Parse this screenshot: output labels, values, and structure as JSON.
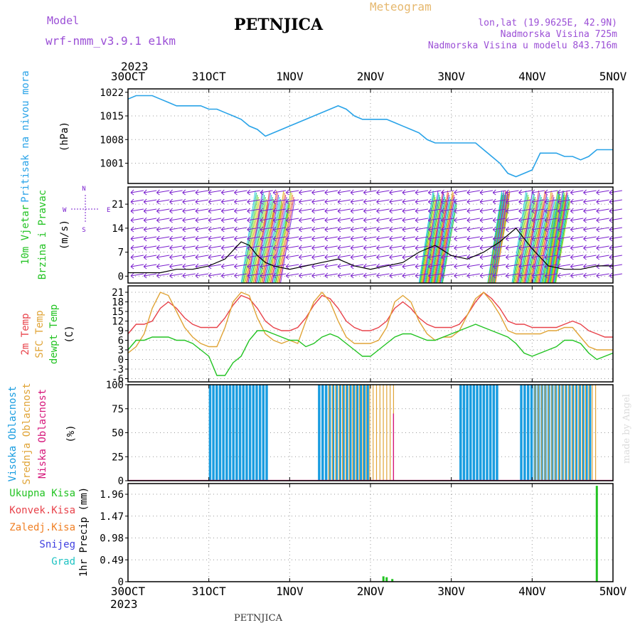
{
  "header": {
    "model_label": "Model",
    "model_name": "wrf-nmm_v3.9.1 e1km",
    "title": "PETNJICA",
    "product": "Meteogram",
    "lonlat": "lon,lat (19.9625E, 42.9N)",
    "elevation": "Nadmorska Visina 725m",
    "model_elevation": "Nadmorska Visina u modelu 843.716m"
  },
  "footer": {
    "station": "PETNJICA",
    "credit": "made by Angel"
  },
  "time_axis": {
    "year": "2023",
    "labels": [
      "30OCT",
      "31OCT",
      "1NOV",
      "2NOV",
      "3NOV",
      "4NOV",
      "5NOV"
    ]
  },
  "colors": {
    "pressure": "#29a3e8",
    "wind_label": "#22c322",
    "wind_vector": "#7a1fcf",
    "temp2m": "#e8424a",
    "sfc_temp": "#e0a437",
    "dewpt": "#22c322",
    "high_cloud": "#1a9de0",
    "mid_cloud": "#e0a437",
    "low_cloud": "#d6157a",
    "total_rain": "#22c322",
    "conv_rain": "#e8424a",
    "freezing_rain": "#f07f23",
    "snow": "#3f3fe0",
    "hail": "#1fc3c3"
  },
  "chart_data": [
    {
      "type": "line",
      "panel": "pressure",
      "ylabel_name": "Pritisak na nivou mora",
      "ylabel_unit": "(hPa)",
      "yticks": [
        1001,
        1008,
        1015,
        1022
      ],
      "ylim": [
        995,
        1023
      ],
      "x_days": [
        0,
        0.1,
        0.2,
        0.3,
        0.4,
        0.5,
        0.6,
        0.7,
        0.8,
        0.9,
        1.0,
        1.1,
        1.2,
        1.3,
        1.4,
        1.5,
        1.6,
        1.7,
        1.8,
        1.9,
        2.0,
        2.1,
        2.2,
        2.3,
        2.4,
        2.5,
        2.6,
        2.7,
        2.8,
        2.9,
        3.0,
        3.1,
        3.2,
        3.3,
        3.4,
        3.5,
        3.6,
        3.7,
        3.8,
        3.9,
        4.0,
        4.1,
        4.2,
        4.3,
        4.4,
        4.5,
        4.6,
        4.7,
        4.8,
        4.9,
        5.0,
        5.1,
        5.2,
        5.3,
        5.4,
        5.5,
        5.6,
        5.7,
        5.8,
        5.9,
        6.0
      ],
      "values": [
        1020,
        1021,
        1021,
        1021,
        1020,
        1019,
        1018,
        1018,
        1018,
        1018,
        1017,
        1017,
        1016,
        1015,
        1014,
        1012,
        1011,
        1009,
        1010,
        1011,
        1012,
        1013,
        1014,
        1015,
        1016,
        1017,
        1018,
        1017,
        1015,
        1014,
        1014,
        1014,
        1014,
        1013,
        1012,
        1011,
        1010,
        1008,
        1007,
        1007,
        1007,
        1007,
        1007,
        1007,
        1005,
        1003,
        1001,
        998,
        997,
        998,
        999,
        1004,
        1004,
        1004,
        1003,
        1003,
        1002,
        1003,
        1005,
        1005,
        1005
      ],
      "grid": true
    },
    {
      "type": "line",
      "panel": "wind",
      "ylabel_name": "10m Vjetar",
      "ylabel_name2": "Brzina i Pravac",
      "ylabel_unit": "(m/s)",
      "compass": {
        "n": "N",
        "s": "S",
        "w": "W",
        "e": "E"
      },
      "yticks": [
        0,
        7,
        14,
        21
      ],
      "ylim": [
        -2,
        26
      ],
      "x_days": [
        0,
        0.2,
        0.4,
        0.6,
        0.8,
        1.0,
        1.2,
        1.4,
        1.5,
        1.6,
        1.7,
        1.8,
        2.0,
        2.2,
        2.4,
        2.6,
        2.8,
        3.0,
        3.2,
        3.4,
        3.6,
        3.8,
        4.0,
        4.2,
        4.4,
        4.6,
        4.8,
        5.0,
        5.2,
        5.4,
        5.6,
        5.8,
        6.0
      ],
      "values": [
        1,
        1,
        1,
        2,
        2,
        3,
        5,
        10,
        9,
        6,
        4,
        3,
        2,
        3,
        4,
        5,
        3,
        2,
        3,
        4,
        7,
        9,
        6,
        5,
        7,
        10,
        14,
        8,
        3,
        2,
        2,
        3,
        3
      ],
      "grid": true
    },
    {
      "type": "line",
      "panel": "temperature",
      "ylabel_names": [
        "2m Temp",
        "SFC Temp",
        "dewpt Temp"
      ],
      "ylabel_unit": "(C)",
      "yticks": [
        -6,
        -3,
        0,
        3,
        6,
        9,
        12,
        15,
        18,
        21
      ],
      "ylim": [
        -7,
        23
      ],
      "x_days": [
        0,
        0.1,
        0.2,
        0.3,
        0.4,
        0.5,
        0.6,
        0.7,
        0.8,
        0.9,
        1.0,
        1.1,
        1.2,
        1.3,
        1.4,
        1.5,
        1.6,
        1.7,
        1.8,
        1.9,
        2.0,
        2.1,
        2.2,
        2.3,
        2.4,
        2.5,
        2.6,
        2.7,
        2.8,
        2.9,
        3.0,
        3.1,
        3.2,
        3.3,
        3.4,
        3.5,
        3.6,
        3.7,
        3.8,
        3.9,
        4.0,
        4.1,
        4.2,
        4.3,
        4.4,
        4.5,
        4.6,
        4.7,
        4.8,
        4.9,
        5.0,
        5.1,
        5.2,
        5.3,
        5.4,
        5.5,
        5.6,
        5.7,
        5.8,
        5.9,
        6.0
      ],
      "series": [
        {
          "name": "2m Temp",
          "values": [
            8,
            11,
            11,
            12,
            16,
            18,
            16,
            13,
            11,
            10,
            10,
            10,
            13,
            17,
            20,
            19,
            16,
            12,
            10,
            9,
            9,
            10,
            13,
            17,
            20,
            19,
            16,
            12,
            10,
            9,
            9,
            10,
            12,
            16,
            18,
            16,
            13,
            11,
            10,
            10,
            10,
            11,
            14,
            18,
            21,
            19,
            16,
            12,
            11,
            11,
            10,
            10,
            10,
            10,
            11,
            12,
            11,
            9,
            8,
            7,
            7
          ]
        },
        {
          "name": "SFC Temp",
          "values": [
            2,
            4,
            8,
            16,
            21,
            20,
            15,
            10,
            7,
            5,
            4,
            4,
            10,
            18,
            21,
            20,
            13,
            8,
            6,
            5,
            6,
            5,
            12,
            18,
            21,
            18,
            12,
            7,
            5,
            5,
            5,
            6,
            10,
            18,
            20,
            18,
            12,
            8,
            6,
            7,
            7,
            9,
            14,
            19,
            21,
            18,
            14,
            9,
            8,
            8,
            8,
            8,
            9,
            9,
            10,
            10,
            7,
            4,
            3,
            3,
            3
          ]
        },
        {
          "name": "dewpt Temp",
          "values": [
            3,
            6,
            6,
            7,
            7,
            7,
            6,
            6,
            5,
            3,
            1,
            -5,
            -5,
            -1,
            1,
            6,
            9,
            9,
            8,
            7,
            6,
            6,
            4,
            5,
            7,
            8,
            7,
            5,
            3,
            1,
            1,
            3,
            5,
            7,
            8,
            8,
            7,
            6,
            6,
            7,
            8,
            9,
            10,
            11,
            10,
            9,
            8,
            7,
            5,
            2,
            1,
            2,
            3,
            4,
            6,
            6,
            5,
            2,
            0,
            1,
            2
          ]
        }
      ],
      "grid": true
    },
    {
      "type": "bar",
      "panel": "cloud",
      "ylabel_names": [
        "Visoka Oblacnost",
        "Srednja Oblacnost",
        "Niska Oblacnost"
      ],
      "ylabel_unit": "(%)",
      "yticks": [
        0,
        25,
        50,
        75,
        100
      ],
      "ylim": [
        0,
        100
      ],
      "series": [
        {
          "name": "Visoka Oblacnost",
          "spans": [
            [
              1.0,
              1.7,
              100
            ],
            [
              2.35,
              2.95,
              100
            ],
            [
              4.1,
              4.55,
              100
            ],
            [
              4.85,
              5.7,
              100
            ]
          ]
        },
        {
          "name": "Srednja Oblacnost",
          "spans": [
            [
              2.45,
              3.25,
              100
            ],
            [
              5.0,
              5.75,
              100
            ]
          ]
        },
        {
          "name": "Niska Oblacnost",
          "spans": [
            [
              3.25,
              3.25,
              70
            ]
          ]
        }
      ],
      "grid": true
    },
    {
      "type": "bar",
      "panel": "precip",
      "legend": [
        "Ukupna Kisa",
        "Konvek.Kisa",
        "Zaledj.Kisa",
        "Snijeg",
        "Grad"
      ],
      "ylabel_unit": "1hr Precip (mm)",
      "yticks": [
        0,
        0.49,
        0.98,
        1.47,
        1.96
      ],
      "ylim": [
        0,
        2.2
      ],
      "series": [
        {
          "name": "Ukupna Kisa",
          "x_days": [
            3.16,
            3.2,
            3.27,
            5.8
          ],
          "values": [
            0.12,
            0.1,
            0.06,
            2.15
          ]
        }
      ],
      "grid": true
    }
  ]
}
